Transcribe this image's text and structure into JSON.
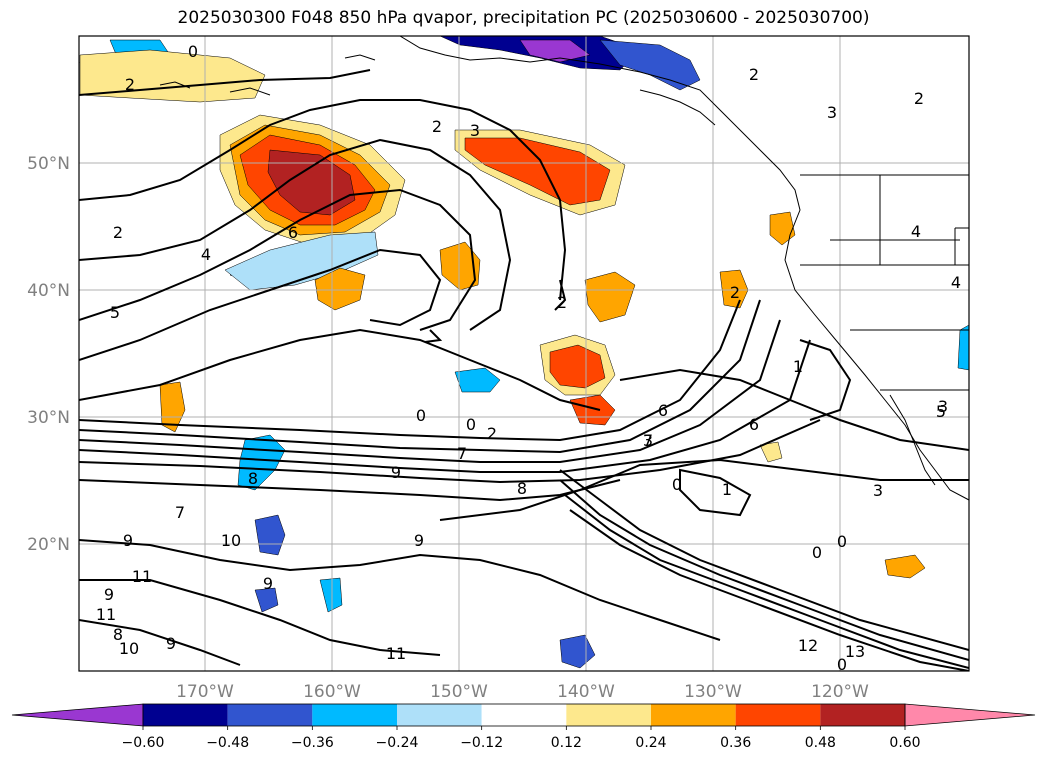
{
  "title": "2025030300 F048 850 hPa qvapor, precipitation PC (2025030600 - 2025030700)",
  "map": {
    "lat_labels": [
      "50°N",
      "40°N",
      "30°N",
      "20°N"
    ],
    "lon_labels": [
      "170°W",
      "160°W",
      "150°W",
      "140°W",
      "130°W",
      "120°W"
    ],
    "contour_labels": [
      "0",
      "2",
      "2",
      "2",
      "2",
      "3",
      "2",
      "3",
      "4",
      "5",
      "6",
      "2",
      "4",
      "2",
      "1",
      "0",
      "0",
      "0",
      "1",
      "2",
      "3",
      "5",
      "6",
      "7",
      "8",
      "9",
      "8",
      "7",
      "9",
      "10",
      "11",
      "9",
      "10",
      "9",
      "8",
      "9",
      "11",
      "9",
      "11",
      "12",
      "13",
      "0",
      "0",
      "0",
      "3",
      "3",
      "4",
      "6",
      "7"
    ]
  },
  "colorbar": {
    "tick_labels": [
      "−0.60",
      "−0.48",
      "−0.36",
      "−0.24",
      "−0.12",
      "0.12",
      "0.24",
      "0.36",
      "0.48",
      "0.60"
    ],
    "colors": [
      "#9a37d1",
      "#000090",
      "#3155cf",
      "#00baff",
      "#aee0f9",
      "#ffffff",
      "#fde88d",
      "#ffa500",
      "#ff4500",
      "#b22222",
      "#ff88aa"
    ]
  },
  "palette": {
    "neg_strong": "#000090",
    "neg_mid": "#3155cf",
    "neg_light": "#00baff",
    "neg_pale": "#aee0f9",
    "pos_pale": "#fde88d",
    "pos_mid": "#ffa500",
    "pos_strong": "#ff4500",
    "pos_max": "#b22222",
    "purple": "#9a37d1"
  }
}
